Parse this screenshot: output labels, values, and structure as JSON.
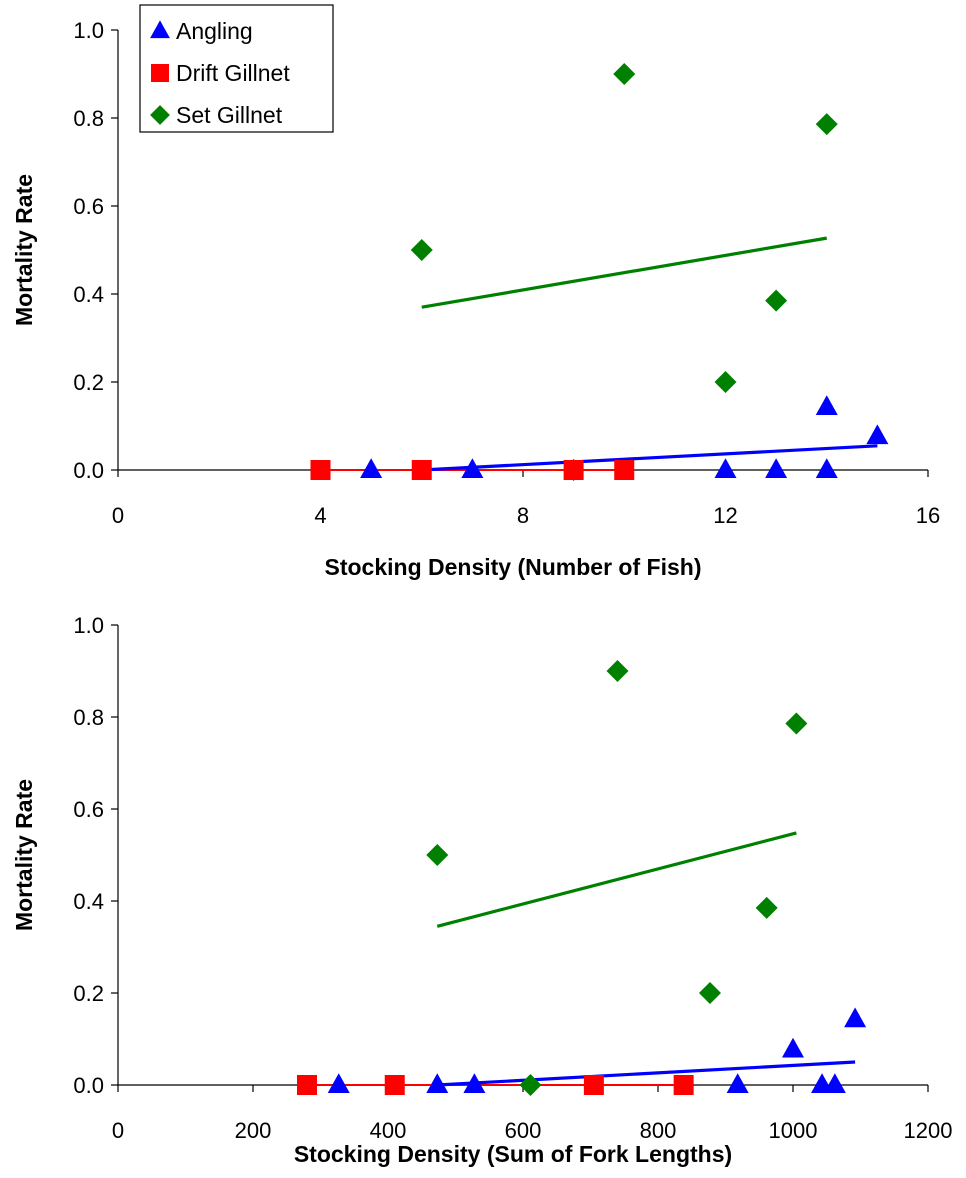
{
  "series_styles": [
    {
      "name": "Angling",
      "color": "#0000ff",
      "marker": "triangle"
    },
    {
      "name": "Drift Gillnet",
      "color": "#ff0000",
      "marker": "square"
    },
    {
      "name": "Set Gillnet",
      "color": "#008000",
      "marker": "diamond"
    }
  ],
  "chart_data": [
    {
      "type": "scatter",
      "title": "",
      "xlabel": "Stocking Density (Number of Fish)",
      "ylabel": "Mortality Rate",
      "xlim": [
        0,
        16
      ],
      "ylim": [
        0,
        1
      ],
      "xticks": [
        "0",
        "4",
        "8",
        "12",
        "16"
      ],
      "yticks": [
        "0.0",
        "0.2",
        "0.4",
        "0.6",
        "0.8",
        "1.0"
      ],
      "legend": "top-left",
      "series": [
        {
          "name": "Angling",
          "x": [
            5,
            7,
            12,
            13,
            14,
            14,
            15
          ],
          "y": [
            0,
            0,
            0,
            0,
            0,
            0.143,
            0.077
          ],
          "trendline": {
            "x": [
              6,
              15
            ],
            "y": [
              0.0,
              0.055
            ]
          }
        },
        {
          "name": "Drift Gillnet",
          "x": [
            4,
            6,
            9,
            10
          ],
          "y": [
            0,
            0,
            0,
            0
          ],
          "trendline": {
            "x": [
              4,
              10
            ],
            "y": [
              0.0,
              0.0
            ]
          }
        },
        {
          "name": "Set Gillnet",
          "x": [
            6,
            9,
            10,
            12,
            13,
            14
          ],
          "y": [
            0.5,
            0.0,
            0.9,
            0.2,
            0.385,
            0.786
          ],
          "trendline": {
            "x": [
              6,
              14
            ],
            "y": [
              0.37,
              0.527
            ]
          }
        }
      ]
    },
    {
      "type": "scatter",
      "title": "",
      "xlabel": "Stocking Density (Sum of Fork Lengths)",
      "ylabel": "Mortality Rate",
      "xlim": [
        0,
        1200
      ],
      "ylim": [
        0,
        1
      ],
      "xticks": [
        "0",
        "200",
        "400",
        "600",
        "800",
        "1000",
        "1200"
      ],
      "yticks": [
        "0.0",
        "0.2",
        "0.4",
        "0.6",
        "0.8",
        "1.0"
      ],
      "legend": "",
      "series": [
        {
          "name": "Angling",
          "x": [
            327,
            473,
            528,
            918,
            1000,
            1043,
            1062,
            1092
          ],
          "y": [
            0,
            0,
            0,
            0,
            0.077,
            0,
            0,
            0.143
          ],
          "trendline": {
            "x": [
              473,
              1092
            ],
            "y": [
              0.0,
              0.05
            ]
          }
        },
        {
          "name": "Drift Gillnet",
          "x": [
            280,
            410,
            705,
            838
          ],
          "y": [
            0,
            0,
            0,
            0
          ],
          "trendline": {
            "x": [
              280,
              838
            ],
            "y": [
              0.0,
              0.0
            ]
          }
        },
        {
          "name": "Set Gillnet",
          "x": [
            473,
            611,
            740,
            877,
            961,
            1005
          ],
          "y": [
            0.5,
            0.0,
            0.9,
            0.2,
            0.385,
            0.786
          ],
          "trendline": {
            "x": [
              473,
              1005
            ],
            "y": [
              0.345,
              0.548
            ]
          }
        }
      ]
    }
  ]
}
